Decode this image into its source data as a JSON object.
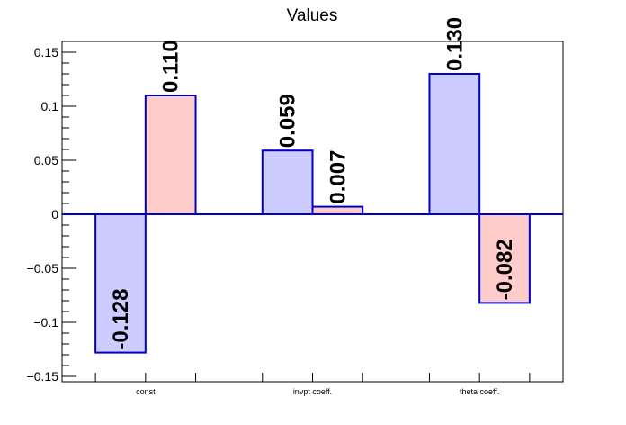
{
  "chart_data": {
    "type": "bar",
    "title": "Values",
    "xlabel": "",
    "ylabel": "",
    "categories": [
      "const",
      "invpt coeff.",
      "theta coeff."
    ],
    "series": [
      {
        "values": [
          -0.128,
          0.059,
          0.13
        ],
        "color": "#ccccff"
      },
      {
        "values": [
          0.11,
          0.007,
          -0.082
        ],
        "color": "#ffcccc"
      }
    ],
    "data_labels": [
      [
        "-0.128",
        "0.059",
        "0.130"
      ],
      [
        "0.110",
        "0.007",
        "-0.082"
      ]
    ],
    "ylim": [
      -0.155,
      0.16
    ],
    "yticks": [
      -0.15,
      -0.1,
      -0.05,
      0,
      0.05,
      0.1,
      0.15
    ],
    "ytick_labels": [
      "−0.15",
      "−0.1",
      "−0.05",
      "0",
      "0.05",
      "0.1",
      "0.15"
    ],
    "bar_edge_color": "#0000cc",
    "grid": false,
    "legend": "none"
  }
}
